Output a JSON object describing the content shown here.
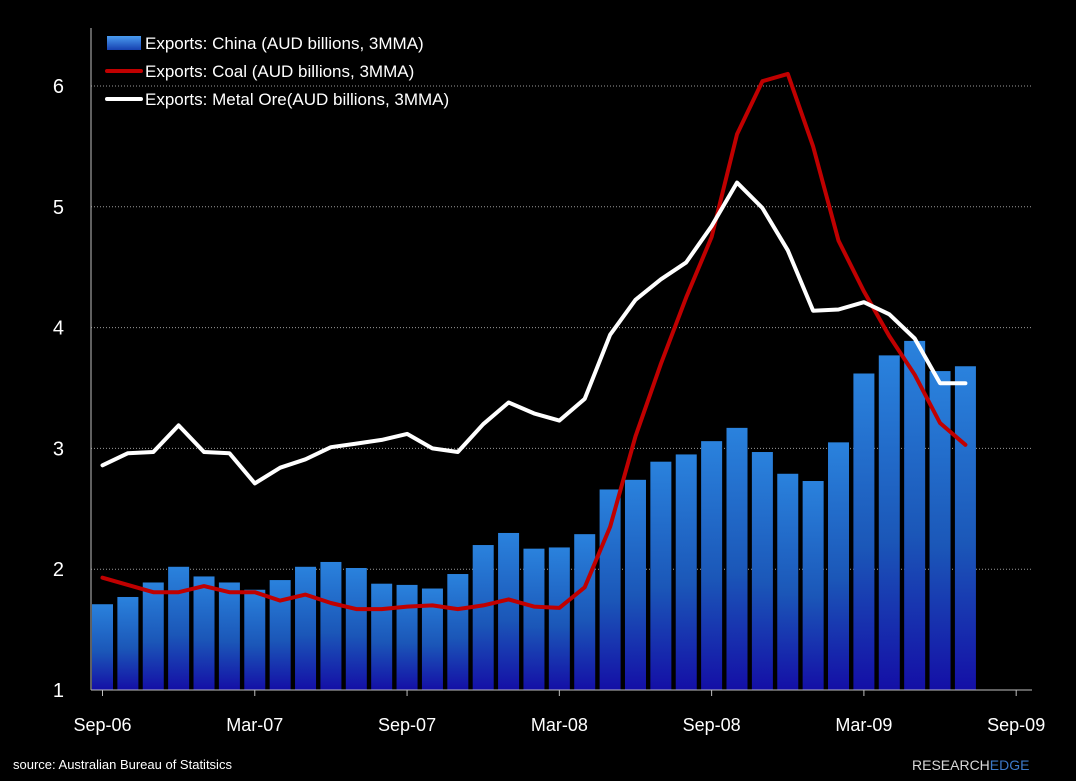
{
  "chart_data": {
    "type": "bar",
    "x": [
      "Sep-06",
      "Oct-06",
      "Nov-06",
      "Dec-06",
      "Jan-07",
      "Feb-07",
      "Mar-07",
      "Apr-07",
      "May-07",
      "Jun-07",
      "Jul-07",
      "Aug-07",
      "Sep-07",
      "Oct-07",
      "Nov-07",
      "Dec-07",
      "Jan-08",
      "Feb-08",
      "Mar-08",
      "Apr-08",
      "May-08",
      "Jun-08",
      "Jul-08",
      "Aug-08",
      "Sep-08",
      "Oct-08",
      "Nov-08",
      "Dec-08",
      "Jan-09",
      "Feb-09",
      "Mar-09",
      "Apr-09",
      "May-09",
      "Jun-09",
      "Jul-09"
    ],
    "x_tick_labels": [
      "Sep-06",
      "Mar-07",
      "Sep-07",
      "Mar-08",
      "Sep-08",
      "Mar-09",
      "Sep-09"
    ],
    "ylim": [
      1,
      6.5
    ],
    "yticks": [
      1,
      2,
      3,
      4,
      5,
      6
    ],
    "grid": true,
    "legend_position": "top-left",
    "series": [
      {
        "name": "Exports: China (AUD billions, 3MMA)",
        "type": "bar",
        "color": "#2f7fd6",
        "values": [
          1.71,
          1.77,
          1.89,
          2.02,
          1.94,
          1.89,
          1.83,
          1.91,
          2.02,
          2.06,
          2.01,
          1.88,
          1.87,
          1.84,
          1.96,
          2.2,
          2.3,
          2.17,
          2.18,
          2.29,
          2.66,
          2.74,
          2.89,
          2.95,
          3.06,
          3.17,
          2.97,
          2.79,
          2.73,
          3.05,
          3.62,
          3.77,
          3.89,
          3.64,
          3.68
        ]
      },
      {
        "name": "Exports: Coal (AUD billions, 3MMA)",
        "type": "line",
        "color": "#c00000",
        "values": [
          1.93,
          1.87,
          1.81,
          1.81,
          1.86,
          1.81,
          1.81,
          1.74,
          1.79,
          1.72,
          1.67,
          1.67,
          1.69,
          1.7,
          1.67,
          1.7,
          1.75,
          1.69,
          1.68,
          1.85,
          2.35,
          3.1,
          3.7,
          4.25,
          4.75,
          5.6,
          6.04,
          6.1,
          5.5,
          4.72,
          4.3,
          3.93,
          3.61,
          3.21,
          3.03
        ]
      },
      {
        "name": "Exports: Metal Ore(AUD billions, 3MMA)",
        "type": "line",
        "color": "#ffffff",
        "values": [
          2.86,
          2.96,
          2.97,
          3.19,
          2.97,
          2.96,
          2.71,
          2.84,
          2.91,
          3.01,
          3.04,
          3.07,
          3.12,
          3.0,
          2.97,
          3.2,
          3.38,
          3.29,
          3.23,
          3.41,
          3.94,
          4.23,
          4.4,
          4.54,
          4.84,
          5.2,
          4.99,
          4.64,
          4.14,
          4.15,
          4.21,
          4.11,
          3.91,
          3.54,
          3.54
        ]
      }
    ]
  },
  "footer": {
    "source": "source: Australian Bureau of Statitsics",
    "logo_part1": "RESEARCH",
    "logo_part2": "EDGE"
  }
}
